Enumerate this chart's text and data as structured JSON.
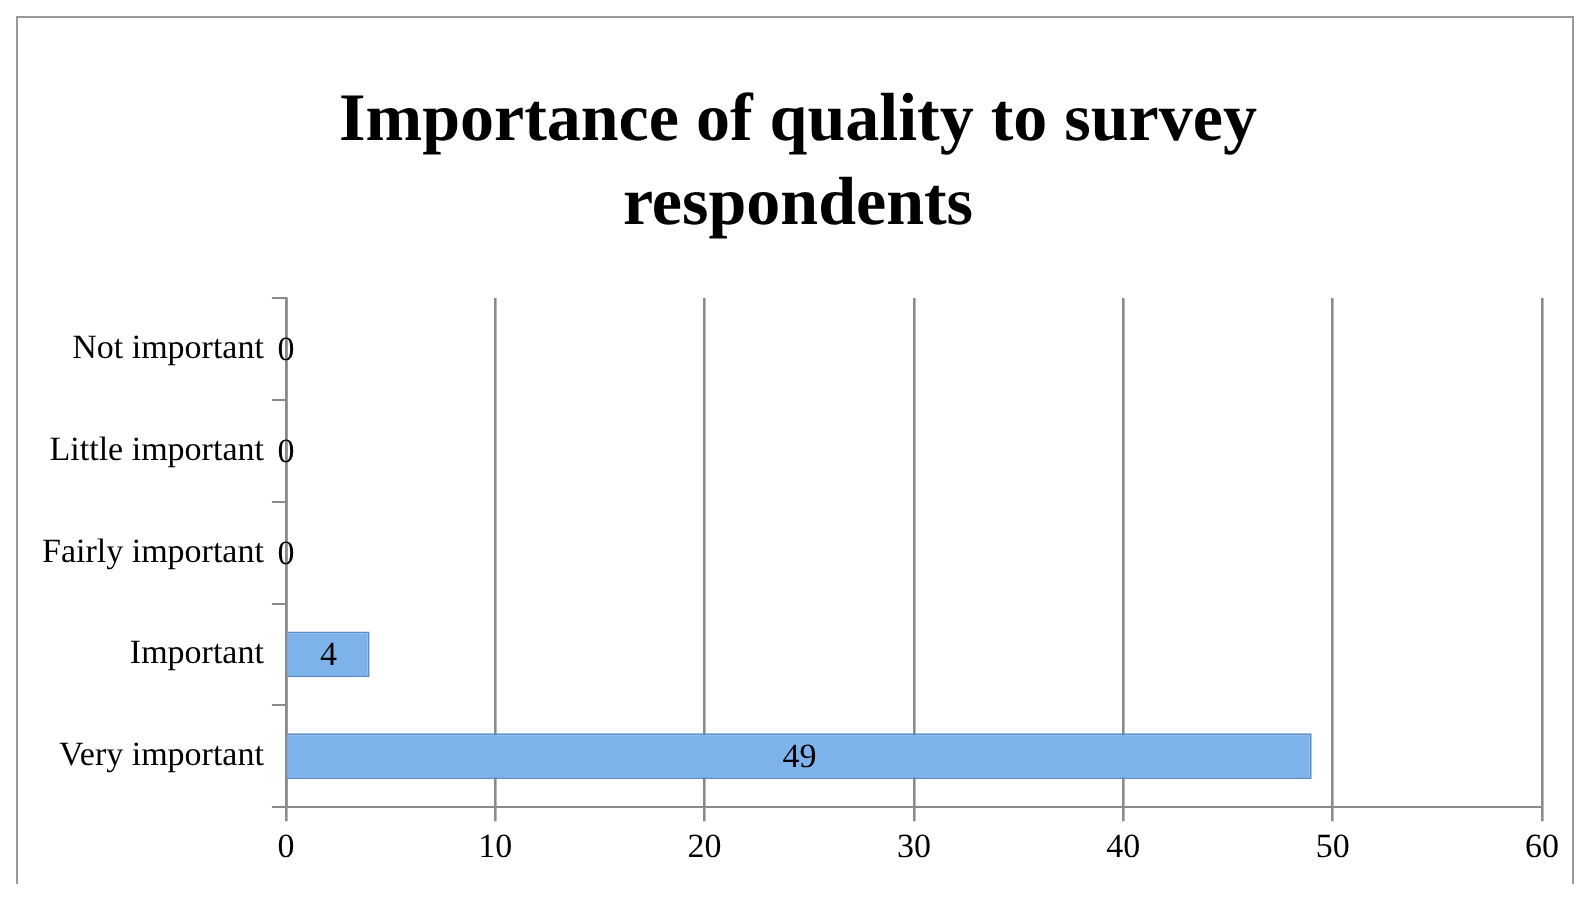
{
  "chart_data": {
    "type": "bar",
    "orientation": "horizontal",
    "title": "Importance of quality to survey respondents",
    "categories": [
      "Not important",
      "Little important",
      "Fairly important",
      "Important",
      "Very important"
    ],
    "values": [
      0,
      0,
      0,
      4,
      49
    ],
    "color": "#7db3ea",
    "xlim": [
      0,
      60
    ],
    "xticks": [
      0,
      10,
      20,
      30,
      40,
      50,
      60
    ],
    "grid": "x",
    "data_labels": true,
    "legend": false
  }
}
